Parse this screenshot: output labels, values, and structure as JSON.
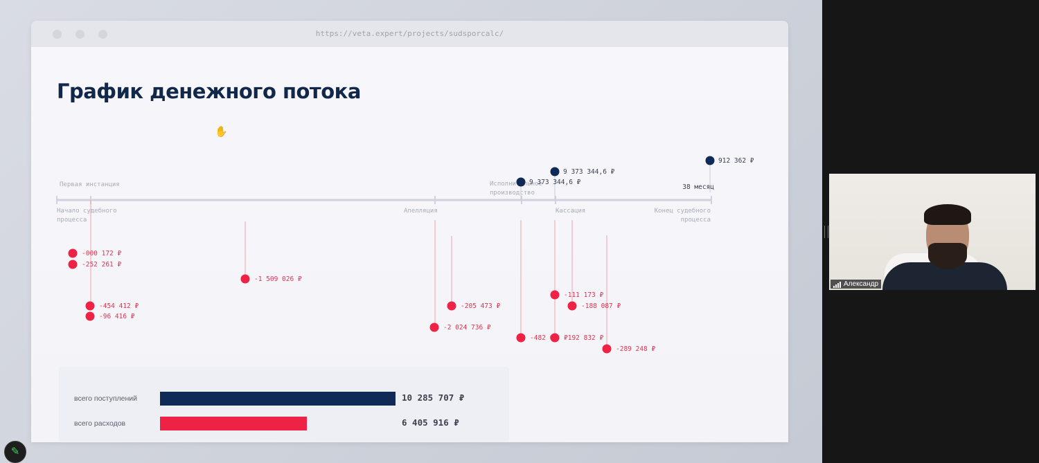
{
  "browser": {
    "url": "https://veta.expert/projects/sudsporcalc/"
  },
  "page": {
    "title": "График денежного потока"
  },
  "timeline": {
    "start_label": "Начало судебного процесса",
    "first_instance_label": "Первая инстанция",
    "appeal_label": "Апелляция",
    "enforcement_label": "Исполнительное производство",
    "cassation_label": "Кассация",
    "end_label": "Конец судебного процесса",
    "duration_label": "38 месяц"
  },
  "cashflow": {
    "inflows": [
      {
        "label": "9 373 344,6 ₽"
      },
      {
        "label": "9 373 344,6 ₽"
      },
      {
        "label": "912 362 ₽"
      }
    ],
    "outflows": [
      {
        "label": "-000 172 ₽"
      },
      {
        "label": "-252 261 ₽"
      },
      {
        "label": "-454 412 ₽"
      },
      {
        "label": "-96 416 ₽"
      },
      {
        "label": "-1 509 026 ₽"
      },
      {
        "label": "-2 024 736 ₽"
      },
      {
        "label": "-205 473 ₽"
      },
      {
        "label": "-482 0"
      },
      {
        "label": "-111 173 ₽"
      },
      {
        "label": "₽192 832 ₽"
      },
      {
        "label": "-188 087 ₽"
      },
      {
        "label": "-289 248 ₽"
      }
    ]
  },
  "totals": {
    "income_label": "всего поступлений",
    "income_value": "10 285 707 ₽",
    "expense_label": "всего расходов",
    "expense_value": "6 405 916 ₽",
    "expense_fraction": 0.623
  },
  "colors": {
    "inflow": "#0f2a56",
    "outflow": "#ee2244",
    "axis": "#d0d1dc"
  },
  "webcam": {
    "participant_name": "Александр"
  },
  "icons": {
    "cursor": "hand-cursor",
    "annotate": "pencil-icon",
    "signal": "signal-bars-icon"
  }
}
